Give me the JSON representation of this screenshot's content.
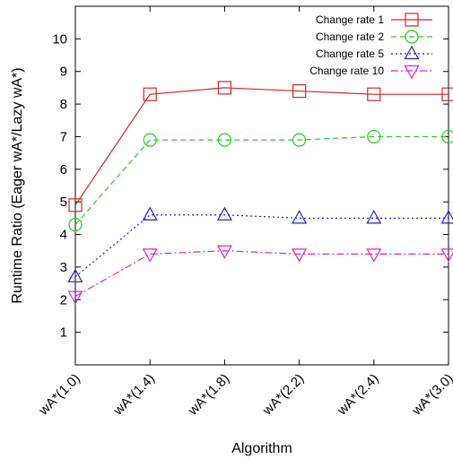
{
  "chart_data": {
    "type": "line",
    "title": "",
    "xlabel": "Algorithm",
    "ylabel": "Runtime Ratio (Eager wA*/Lazy wA*)",
    "categories": [
      "wA*(1.0)",
      "wA*(1.4)",
      "wA*(1.8)",
      "wA*(2.2)",
      "wA*(2.4)",
      "wA*(3.0)"
    ],
    "ylim": [
      0,
      11
    ],
    "yticks": [
      1,
      2,
      3,
      4,
      5,
      6,
      7,
      8,
      9,
      10
    ],
    "grid": false,
    "legend_position": "top-right",
    "series": [
      {
        "name": "Change rate 1",
        "color": "#dd2222",
        "marker": "square",
        "dash": "solid",
        "values": [
          4.9,
          8.3,
          8.5,
          8.4,
          8.3,
          8.3
        ]
      },
      {
        "name": "Change rate 2",
        "color": "#22cc22",
        "marker": "circle",
        "dash": "dashed",
        "values": [
          4.3,
          6.9,
          6.9,
          6.9,
          7.0,
          7.0
        ]
      },
      {
        "name": "Change rate 5",
        "color": "#2222cc",
        "marker": "triangle-up",
        "dash": "dotted",
        "values": [
          2.7,
          4.6,
          4.6,
          4.5,
          4.5,
          4.5
        ]
      },
      {
        "name": "Change rate 10",
        "color": "#dd22dd",
        "marker": "triangle-down",
        "dash": "dashdot",
        "values": [
          2.1,
          3.4,
          3.5,
          3.4,
          3.4,
          3.4
        ]
      }
    ]
  }
}
